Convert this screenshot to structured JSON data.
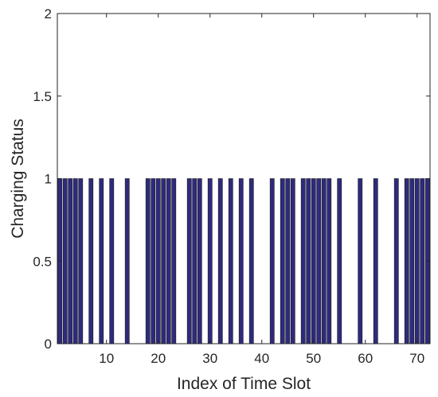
{
  "chart_data": {
    "type": "bar",
    "title": "",
    "xlabel": "Index of Time Slot",
    "ylabel": "Charging Status",
    "xlim": [
      0.5,
      72.5
    ],
    "ylim": [
      0,
      2
    ],
    "xticks": [
      10,
      20,
      30,
      40,
      50,
      60,
      70
    ],
    "yticks": [
      0,
      0.5,
      1,
      1.5,
      2
    ],
    "ytick_labels": [
      "0",
      "0.5",
      "1",
      "1.5",
      "2"
    ],
    "grid": false,
    "bar_color": "#2e2a7e",
    "x": [
      1,
      2,
      3,
      4,
      5,
      6,
      7,
      8,
      9,
      10,
      11,
      12,
      13,
      14,
      15,
      16,
      17,
      18,
      19,
      20,
      21,
      22,
      23,
      24,
      25,
      26,
      27,
      28,
      29,
      30,
      31,
      32,
      33,
      34,
      35,
      36,
      37,
      38,
      39,
      40,
      41,
      42,
      43,
      44,
      45,
      46,
      47,
      48,
      49,
      50,
      51,
      52,
      53,
      54,
      55,
      56,
      57,
      58,
      59,
      60,
      61,
      62,
      63,
      64,
      65,
      66,
      67,
      68,
      69,
      70,
      71,
      72
    ],
    "values": [
      1,
      1,
      1,
      1,
      1,
      0,
      1,
      0,
      1,
      0,
      1,
      0,
      0,
      1,
      0,
      0,
      0,
      1,
      1,
      1,
      1,
      1,
      1,
      0,
      0,
      1,
      1,
      1,
      0,
      1,
      0,
      1,
      0,
      1,
      0,
      1,
      0,
      1,
      0,
      0,
      0,
      1,
      0,
      1,
      1,
      1,
      0,
      1,
      1,
      1,
      1,
      1,
      1,
      0,
      1,
      0,
      0,
      0,
      1,
      0,
      0,
      1,
      0,
      0,
      0,
      1,
      0,
      1,
      1,
      1,
      1,
      1
    ]
  }
}
